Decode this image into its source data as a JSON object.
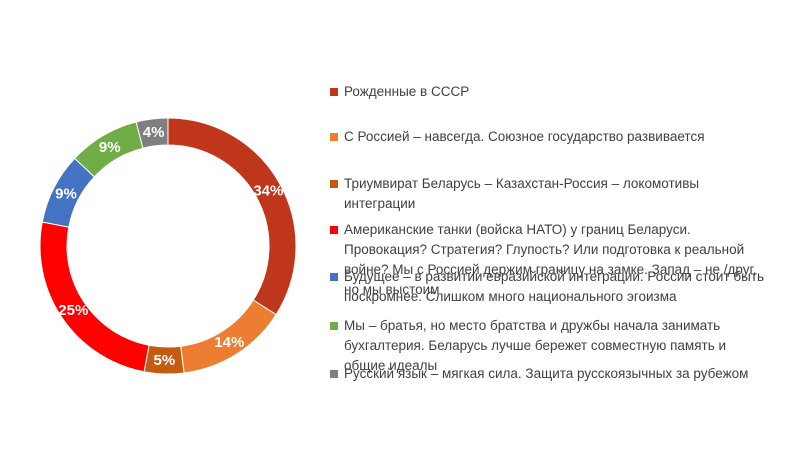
{
  "chart_data": {
    "type": "pie",
    "variant": "donut",
    "title": "",
    "legend_position": "right",
    "series": [
      {
        "name": "Рожденные в СССР",
        "value": 34,
        "label": "34%",
        "color": "#C0361A"
      },
      {
        "name": "С Россией – навсегда. Союзное государство развивается",
        "value": 14,
        "label": "14%",
        "color": "#ED7D31"
      },
      {
        "name": "Триумвират Беларусь – Казахстан-Россия – локомотивы интеграции",
        "value": 5,
        "label": "5%",
        "color": "#C55A11"
      },
      {
        "name": "Американские танки (войска НАТО) у границ Беларуси. Провокация? Стратегия? Глупость? Или подготовка к реальной войне? Мы с Россией держим границу на замке. Запад – не /друг, но мы выстоим",
        "value": 25,
        "label": "25%",
        "color": "#FF0000"
      },
      {
        "name": "Будущее – в развитии евразийской интеграции. России стоит быть поскромнее. Слишком много национального эгоизма",
        "value": 9,
        "label": "9%",
        "color": "#4472C4"
      },
      {
        "name": "Мы – братья, но место братства и дружбы начала занимать бухгалтерия. Беларусь лучше бережет совместную память и общие идеалы",
        "value": 9,
        "label": "9%",
        "color": "#70AD47"
      },
      {
        "name": "Русский язык – мягкая сила. Защита русскоязычных за рубежом",
        "value": 4,
        "label": "4%",
        "color": "#7F7F7F"
      }
    ]
  }
}
